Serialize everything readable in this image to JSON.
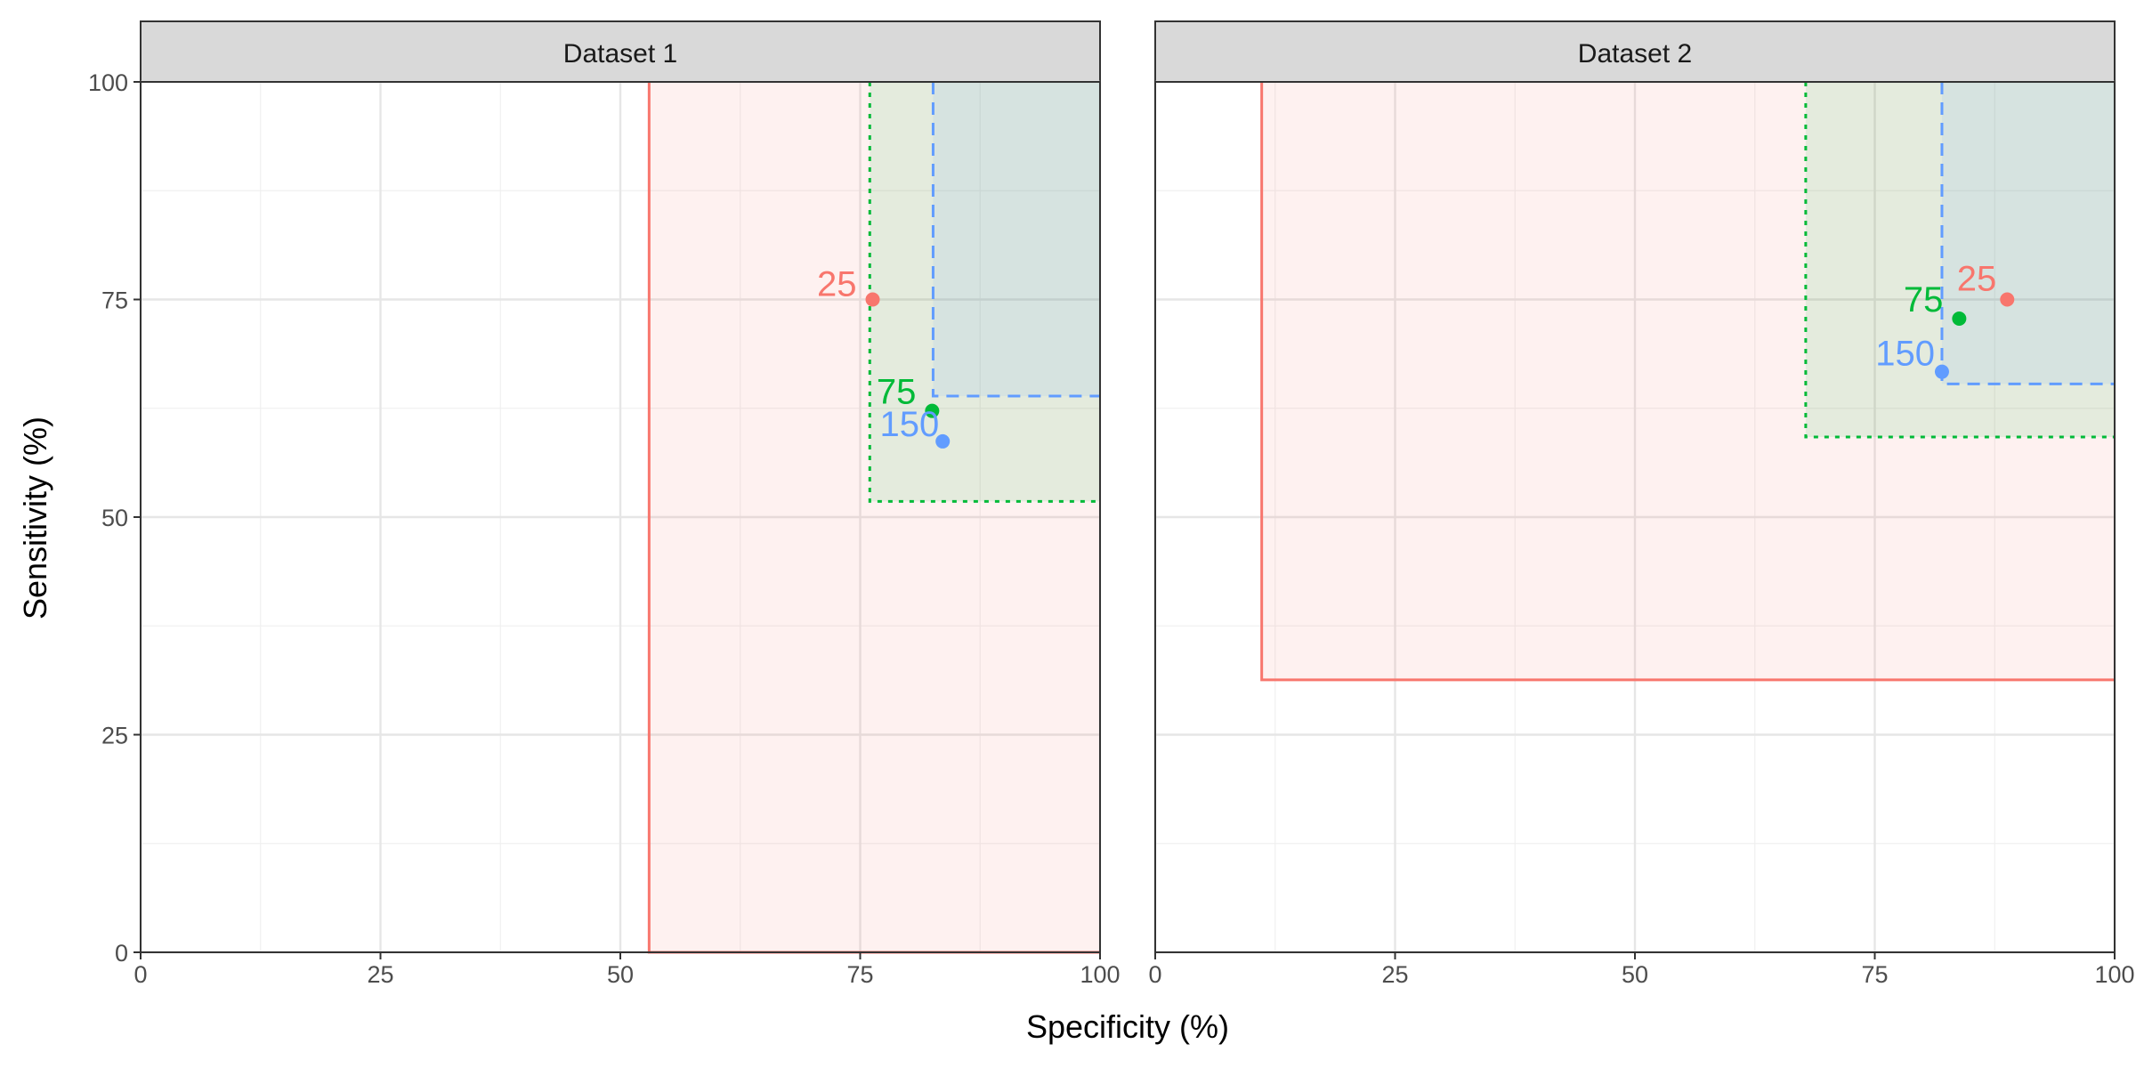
{
  "chart_data": {
    "type": "scatter",
    "xlabel": "Specificity (%)",
    "ylabel": "Sensitivity (%)",
    "xlim": [
      0,
      100
    ],
    "ylim": [
      0,
      100
    ],
    "x_ticks": [
      0,
      25,
      50,
      75,
      100
    ],
    "y_ticks": [
      0,
      25,
      50,
      75,
      100
    ],
    "grid": true,
    "legend": "none",
    "colors": {
      "25": "#F8766D",
      "75": "#00BA38",
      "150": "#619CFF"
    },
    "facets": [
      {
        "title": "Dataset 1",
        "points": [
          {
            "label": "25",
            "specificity": 76.3,
            "sensitivity": 75.0
          },
          {
            "label": "75",
            "specificity": 82.5,
            "sensitivity": 62.2
          },
          {
            "label": "150",
            "specificity": 83.6,
            "sensitivity": 58.7
          }
        ],
        "regions": [
          {
            "label": "25",
            "specificity_min": 53.0,
            "sensitivity_min": 0.0,
            "line": "solid"
          },
          {
            "label": "75",
            "specificity_min": 76.0,
            "sensitivity_min": 51.8,
            "line": "dotted"
          },
          {
            "label": "150",
            "specificity_min": 82.6,
            "sensitivity_min": 63.9,
            "line": "dashed"
          }
        ]
      },
      {
        "title": "Dataset 2",
        "points": [
          {
            "label": "25",
            "specificity": 88.8,
            "sensitivity": 75.0
          },
          {
            "label": "75",
            "specificity": 83.8,
            "sensitivity": 72.8
          },
          {
            "label": "150",
            "specificity": 82.0,
            "sensitivity": 66.7
          }
        ],
        "regions": [
          {
            "label": "25",
            "specificity_min": 11.1,
            "sensitivity_min": 31.3,
            "line": "solid"
          },
          {
            "label": "75",
            "specificity_min": 67.8,
            "sensitivity_min": 59.2,
            "line": "dotted"
          },
          {
            "label": "150",
            "specificity_min": 82.0,
            "sensitivity_min": 65.3,
            "line": "dashed"
          }
        ]
      }
    ]
  }
}
